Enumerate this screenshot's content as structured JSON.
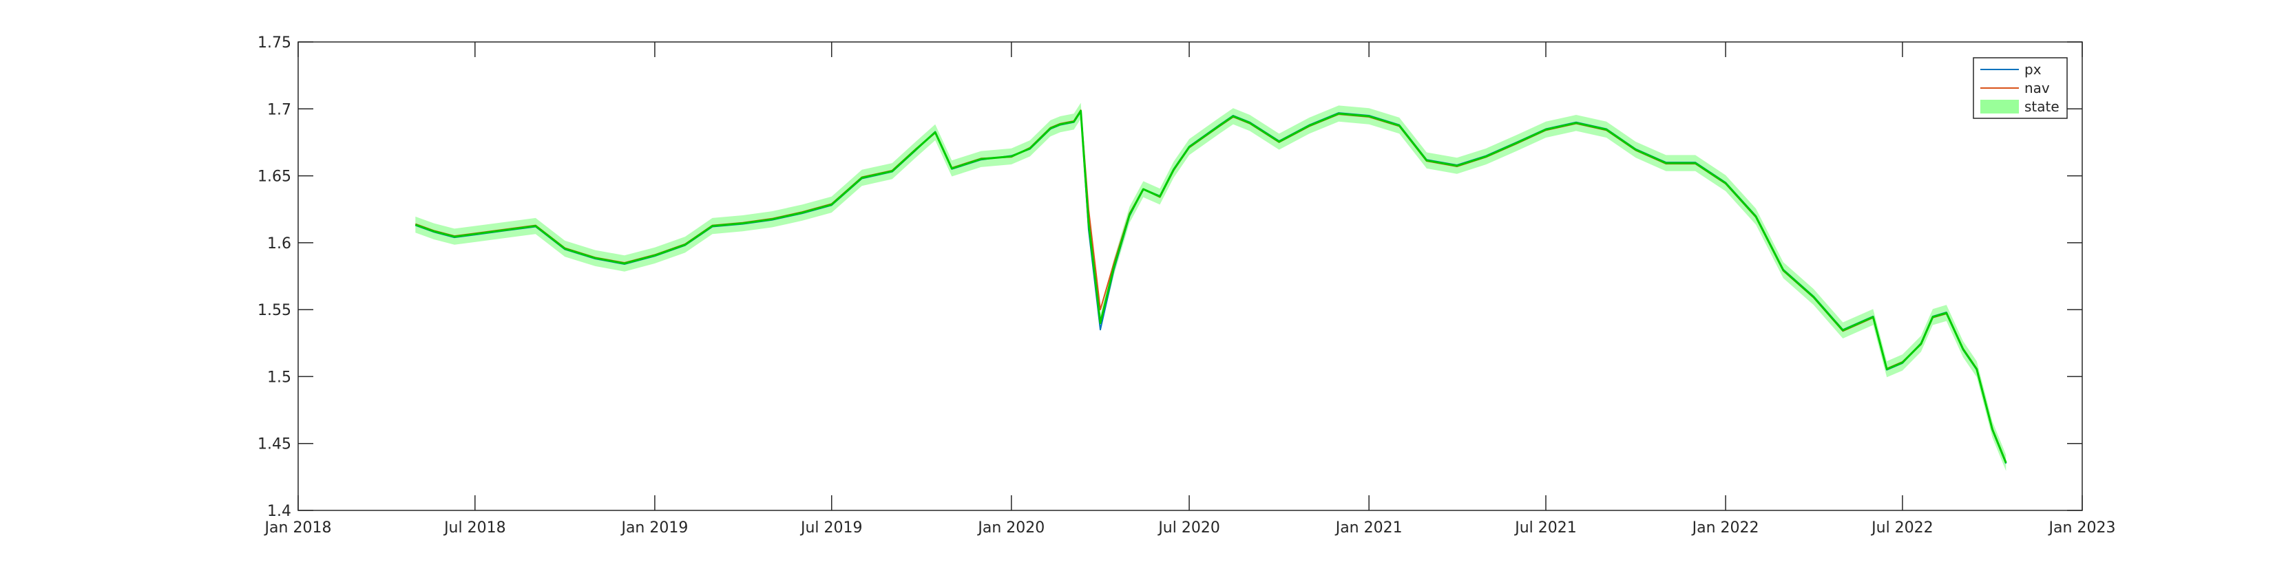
{
  "chart_data": {
    "type": "line",
    "title": "",
    "xlabel": "",
    "ylabel": "",
    "xlim": [
      "2018-01-01",
      "2023-01-01"
    ],
    "ylim": [
      1.4,
      1.75
    ],
    "x_ticks": [
      "2018-01-01",
      "2018-07-01",
      "2019-01-01",
      "2019-07-01",
      "2020-01-01",
      "2020-07-01",
      "2021-01-01",
      "2021-07-01",
      "2022-01-01",
      "2022-07-01",
      "2023-01-01"
    ],
    "x_tick_labels": [
      "Jan 2018",
      "Jul 2018",
      "Jan 2019",
      "Jul 2019",
      "Jan 2020",
      "Jul 2020",
      "Jan 2021",
      "Jul 2021",
      "Jan 2022",
      "Jul 2022",
      "Jan 2023"
    ],
    "y_ticks": [
      1.4,
      1.45,
      1.5,
      1.55,
      1.6,
      1.65,
      1.7,
      1.75
    ],
    "y_tick_labels": [
      "1.4",
      "1.45",
      "1.5",
      "1.55",
      "1.6",
      "1.65",
      "1.7",
      "1.75"
    ],
    "grid": false,
    "legend_position": "top-right",
    "colors": {
      "px": "#0072BD",
      "nav": "#D95319",
      "state_line": "#00CC00",
      "state_band": "#99FF99"
    },
    "series": [
      {
        "name": "px",
        "x": [
          "2018-05-01",
          "2018-05-20",
          "2018-06-10",
          "2018-07-01",
          "2018-08-01",
          "2018-09-01",
          "2018-10-01",
          "2018-11-01",
          "2018-12-01",
          "2019-01-01",
          "2019-02-01",
          "2019-03-01",
          "2019-04-01",
          "2019-05-01",
          "2019-06-01",
          "2019-07-01",
          "2019-08-01",
          "2019-09-01",
          "2019-09-25",
          "2019-10-15",
          "2019-11-01",
          "2019-12-01",
          "2020-01-01",
          "2020-01-20",
          "2020-02-10",
          "2020-02-20",
          "2020-03-05",
          "2020-03-12",
          "2020-03-20",
          "2020-04-01",
          "2020-04-15",
          "2020-05-01",
          "2020-05-15",
          "2020-06-01",
          "2020-06-15",
          "2020-07-01",
          "2020-08-01",
          "2020-08-15",
          "2020-09-01",
          "2020-10-01",
          "2020-11-01",
          "2020-12-01",
          "2021-01-01",
          "2021-02-01",
          "2021-03-01",
          "2021-04-01",
          "2021-05-01",
          "2021-06-01",
          "2021-07-01",
          "2021-08-01",
          "2021-09-01",
          "2021-10-01",
          "2021-11-01",
          "2021-12-01",
          "2022-01-01",
          "2022-02-01",
          "2022-03-01",
          "2022-04-01",
          "2022-05-01",
          "2022-06-01",
          "2022-06-15",
          "2022-07-01",
          "2022-07-20",
          "2022-08-01",
          "2022-08-15",
          "2022-09-01",
          "2022-09-15",
          "2022-10-01",
          "2022-10-15"
        ],
        "y": [
          1.613,
          1.608,
          1.604,
          1.606,
          1.609,
          1.612,
          1.595,
          1.588,
          1.584,
          1.59,
          1.598,
          1.612,
          1.614,
          1.617,
          1.622,
          1.628,
          1.648,
          1.653,
          1.669,
          1.683,
          1.655,
          1.662,
          1.665,
          1.67,
          1.685,
          1.688,
          1.69,
          1.698,
          1.61,
          1.535,
          1.58,
          1.62,
          1.64,
          1.635,
          1.655,
          1.672,
          1.688,
          1.695,
          1.69,
          1.676,
          1.688,
          1.697,
          1.695,
          1.688,
          1.662,
          1.658,
          1.665,
          1.675,
          1.685,
          1.69,
          1.685,
          1.67,
          1.66,
          1.66,
          1.645,
          1.62,
          1.58,
          1.56,
          1.535,
          1.545,
          1.505,
          1.51,
          1.525,
          1.545,
          1.548,
          1.52,
          1.505,
          1.46,
          1.435
        ]
      },
      {
        "name": "nav",
        "x": [
          "2018-05-01",
          "2018-05-20",
          "2018-06-10",
          "2018-07-01",
          "2018-08-01",
          "2018-09-01",
          "2018-10-01",
          "2018-11-01",
          "2018-12-01",
          "2019-01-01",
          "2019-02-01",
          "2019-03-01",
          "2019-04-01",
          "2019-05-01",
          "2019-06-01",
          "2019-07-01",
          "2019-08-01",
          "2019-09-01",
          "2019-09-25",
          "2019-10-15",
          "2019-11-01",
          "2019-12-01",
          "2020-01-01",
          "2020-01-20",
          "2020-02-10",
          "2020-02-20",
          "2020-03-05",
          "2020-03-12",
          "2020-03-20",
          "2020-04-01",
          "2020-04-15",
          "2020-05-01",
          "2020-05-15",
          "2020-06-01",
          "2020-06-15",
          "2020-07-01",
          "2020-08-01",
          "2020-08-15",
          "2020-09-01",
          "2020-10-01",
          "2020-11-01",
          "2020-12-01",
          "2021-01-01",
          "2021-02-01",
          "2021-03-01",
          "2021-04-01",
          "2021-05-01",
          "2021-06-01",
          "2021-07-01",
          "2021-08-01",
          "2021-09-01",
          "2021-10-01",
          "2021-11-01",
          "2021-12-01",
          "2022-01-01",
          "2022-02-01",
          "2022-03-01",
          "2022-04-01",
          "2022-05-01",
          "2022-06-01",
          "2022-06-15",
          "2022-07-01",
          "2022-07-20",
          "2022-08-01",
          "2022-08-15",
          "2022-09-01",
          "2022-09-15",
          "2022-10-01",
          "2022-10-15"
        ],
        "y": [
          1.614,
          1.609,
          1.605,
          1.607,
          1.61,
          1.613,
          1.596,
          1.589,
          1.585,
          1.591,
          1.599,
          1.613,
          1.615,
          1.618,
          1.623,
          1.629,
          1.649,
          1.654,
          1.67,
          1.682,
          1.656,
          1.663,
          1.664,
          1.671,
          1.686,
          1.689,
          1.691,
          1.699,
          1.625,
          1.55,
          1.585,
          1.622,
          1.64,
          1.634,
          1.654,
          1.671,
          1.687,
          1.694,
          1.689,
          1.675,
          1.687,
          1.696,
          1.694,
          1.687,
          1.661,
          1.657,
          1.664,
          1.674,
          1.684,
          1.689,
          1.684,
          1.669,
          1.659,
          1.659,
          1.644,
          1.619,
          1.579,
          1.559,
          1.534,
          1.544,
          1.506,
          1.511,
          1.524,
          1.544,
          1.547,
          1.521,
          1.506,
          1.461,
          1.436
        ]
      },
      {
        "name": "state",
        "band_halfwidth": 0.006,
        "x": [
          "2018-05-01",
          "2018-05-20",
          "2018-06-10",
          "2018-07-01",
          "2018-08-01",
          "2018-09-01",
          "2018-10-01",
          "2018-11-01",
          "2018-12-01",
          "2019-01-01",
          "2019-02-01",
          "2019-03-01",
          "2019-04-01",
          "2019-05-01",
          "2019-06-01",
          "2019-07-01",
          "2019-08-01",
          "2019-09-01",
          "2019-09-25",
          "2019-10-15",
          "2019-11-01",
          "2019-12-01",
          "2020-01-01",
          "2020-01-20",
          "2020-02-10",
          "2020-02-20",
          "2020-03-05",
          "2020-03-12",
          "2020-03-20",
          "2020-04-01",
          "2020-04-15",
          "2020-05-01",
          "2020-05-15",
          "2020-06-01",
          "2020-06-15",
          "2020-07-01",
          "2020-08-01",
          "2020-08-15",
          "2020-09-01",
          "2020-10-01",
          "2020-11-01",
          "2020-12-01",
          "2021-01-01",
          "2021-02-01",
          "2021-03-01",
          "2021-04-01",
          "2021-05-01",
          "2021-06-01",
          "2021-07-01",
          "2021-08-01",
          "2021-09-01",
          "2021-10-01",
          "2021-11-01",
          "2021-12-01",
          "2022-01-01",
          "2022-02-01",
          "2022-03-01",
          "2022-04-01",
          "2022-05-01",
          "2022-06-01",
          "2022-06-15",
          "2022-07-01",
          "2022-07-20",
          "2022-08-01",
          "2022-08-15",
          "2022-09-01",
          "2022-09-15",
          "2022-10-01",
          "2022-10-15"
        ],
        "y": [
          1.6135,
          1.6085,
          1.6045,
          1.6065,
          1.6095,
          1.6125,
          1.5955,
          1.5885,
          1.5845,
          1.5905,
          1.5985,
          1.6125,
          1.6145,
          1.6175,
          1.6225,
          1.6285,
          1.6485,
          1.6535,
          1.6695,
          1.6825,
          1.6555,
          1.6625,
          1.6645,
          1.6705,
          1.6855,
          1.6885,
          1.6905,
          1.6985,
          1.615,
          1.54,
          1.582,
          1.621,
          1.64,
          1.6345,
          1.6545,
          1.6715,
          1.6875,
          1.6945,
          1.6895,
          1.6755,
          1.6875,
          1.6965,
          1.6945,
          1.6875,
          1.6615,
          1.6575,
          1.6645,
          1.6745,
          1.6845,
          1.6895,
          1.6845,
          1.6695,
          1.6595,
          1.6595,
          1.6445,
          1.6195,
          1.5795,
          1.5595,
          1.5345,
          1.5445,
          1.5055,
          1.5105,
          1.5245,
          1.5445,
          1.5475,
          1.5205,
          1.5055,
          1.4605,
          1.4355
        ]
      }
    ]
  }
}
